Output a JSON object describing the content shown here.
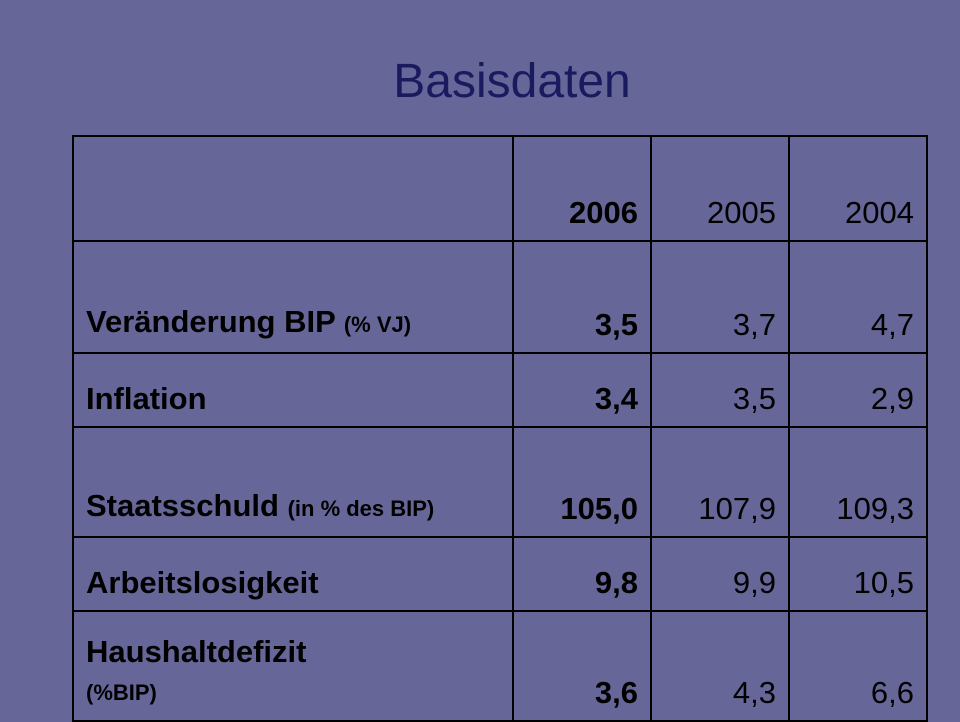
{
  "slide": {
    "title": "Basisdaten"
  },
  "table": {
    "header": {
      "corner": "",
      "years": [
        "2006",
        "2005",
        "2004"
      ]
    },
    "rows": [
      {
        "label": "Veränderung BIP",
        "unit": "(% VJ)",
        "values": [
          "3,5",
          "3,7",
          "4,7"
        ]
      },
      {
        "label": "Inflation",
        "unit": "",
        "values": [
          "3,4",
          "3,5",
          "2,9"
        ]
      },
      {
        "label": "Staatsschuld",
        "unit": "(in % des BIP)",
        "values": [
          "105,0",
          "107,9",
          "109,3"
        ]
      },
      {
        "label": "Arbeitslosigkeit",
        "unit": "",
        "values": [
          "9,8",
          "9,9",
          "10,5"
        ]
      },
      {
        "label": "Haushaltdefizit",
        "unit": "(%BIP)",
        "values": [
          "3,6",
          "4,3",
          "6,6"
        ]
      }
    ]
  },
  "colors": {
    "background": "#676699",
    "title": "#1a1a5e",
    "text": "#000000",
    "border": "#000000"
  }
}
